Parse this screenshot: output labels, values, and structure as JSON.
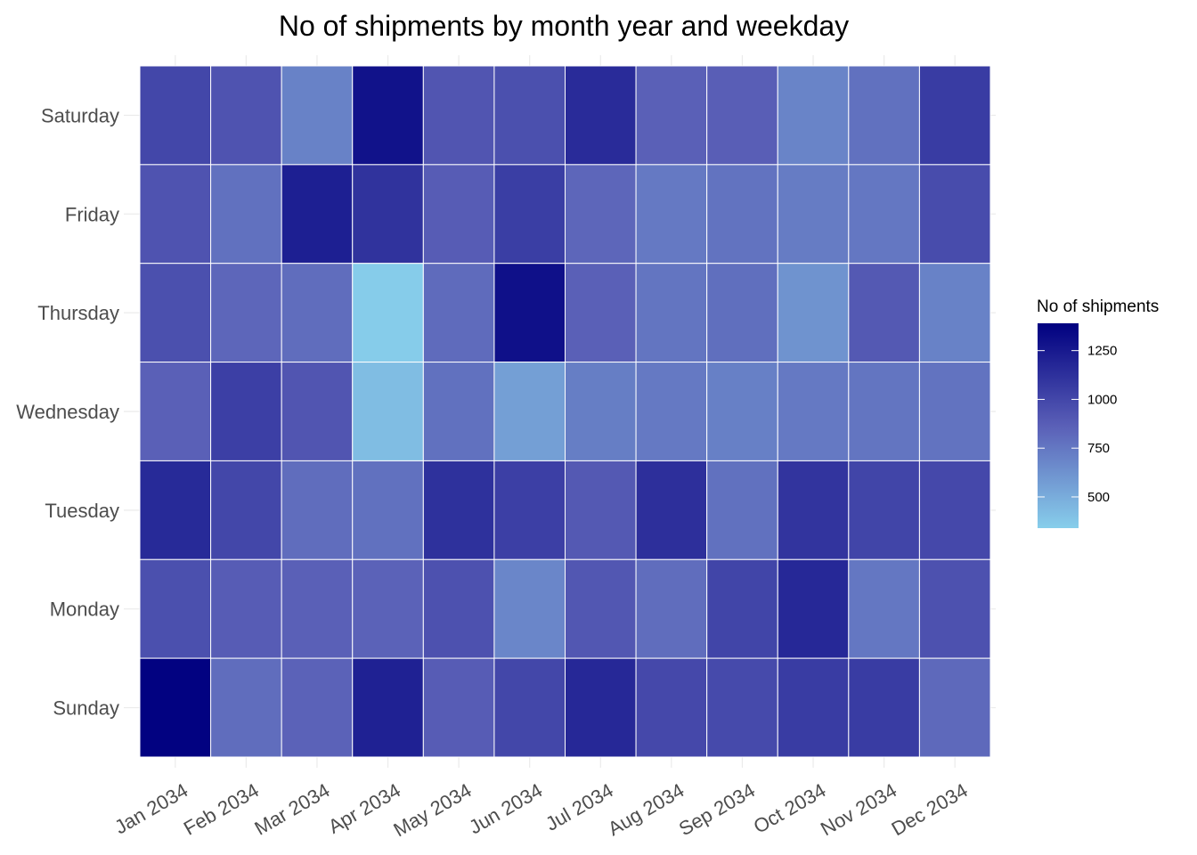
{
  "chart_data": {
    "type": "heatmap",
    "title": "No of shipments by month year and weekday",
    "xlabel": "",
    "ylabel": "",
    "x_categories": [
      "Jan 2034",
      "Feb 2034",
      "Mar 2034",
      "Apr 2034",
      "May 2034",
      "Jun 2034",
      "Jul 2034",
      "Aug 2034",
      "Sep 2034",
      "Oct 2034",
      "Nov 2034",
      "Dec 2034"
    ],
    "y_categories_top_to_bottom": [
      "Saturday",
      "Friday",
      "Thursday",
      "Wednesday",
      "Tuesday",
      "Monday",
      "Sunday"
    ],
    "values": [
      [
        1000,
        930,
        700,
        1290,
        920,
        950,
        1150,
        860,
        870,
        690,
        780,
        1060
      ],
      [
        930,
        780,
        1220,
        1110,
        880,
        1050,
        830,
        740,
        770,
        730,
        750,
        970
      ],
      [
        950,
        830,
        800,
        350,
        810,
        1300,
        860,
        760,
        790,
        620,
        900,
        700
      ],
      [
        860,
        1040,
        920,
        420,
        780,
        560,
        720,
        740,
        710,
        740,
        760,
        770
      ],
      [
        1160,
        1000,
        800,
        780,
        1120,
        1040,
        900,
        1130,
        780,
        1100,
        1010,
        990
      ],
      [
        950,
        880,
        860,
        850,
        940,
        680,
        910,
        800,
        1010,
        1170,
        750,
        940
      ],
      [
        1380,
        800,
        850,
        1210,
        880,
        1000,
        1170,
        990,
        980,
        1060,
        1060,
        820
      ]
    ],
    "legend": {
      "title": "No of shipments",
      "ticks": [
        500,
        750,
        1000,
        1250
      ],
      "range": [
        340,
        1390
      ],
      "color_low": "#87ceeb",
      "color_mid": "#5a5fb7",
      "color_high": "#000080"
    },
    "grid": true,
    "legend_position": "right"
  }
}
